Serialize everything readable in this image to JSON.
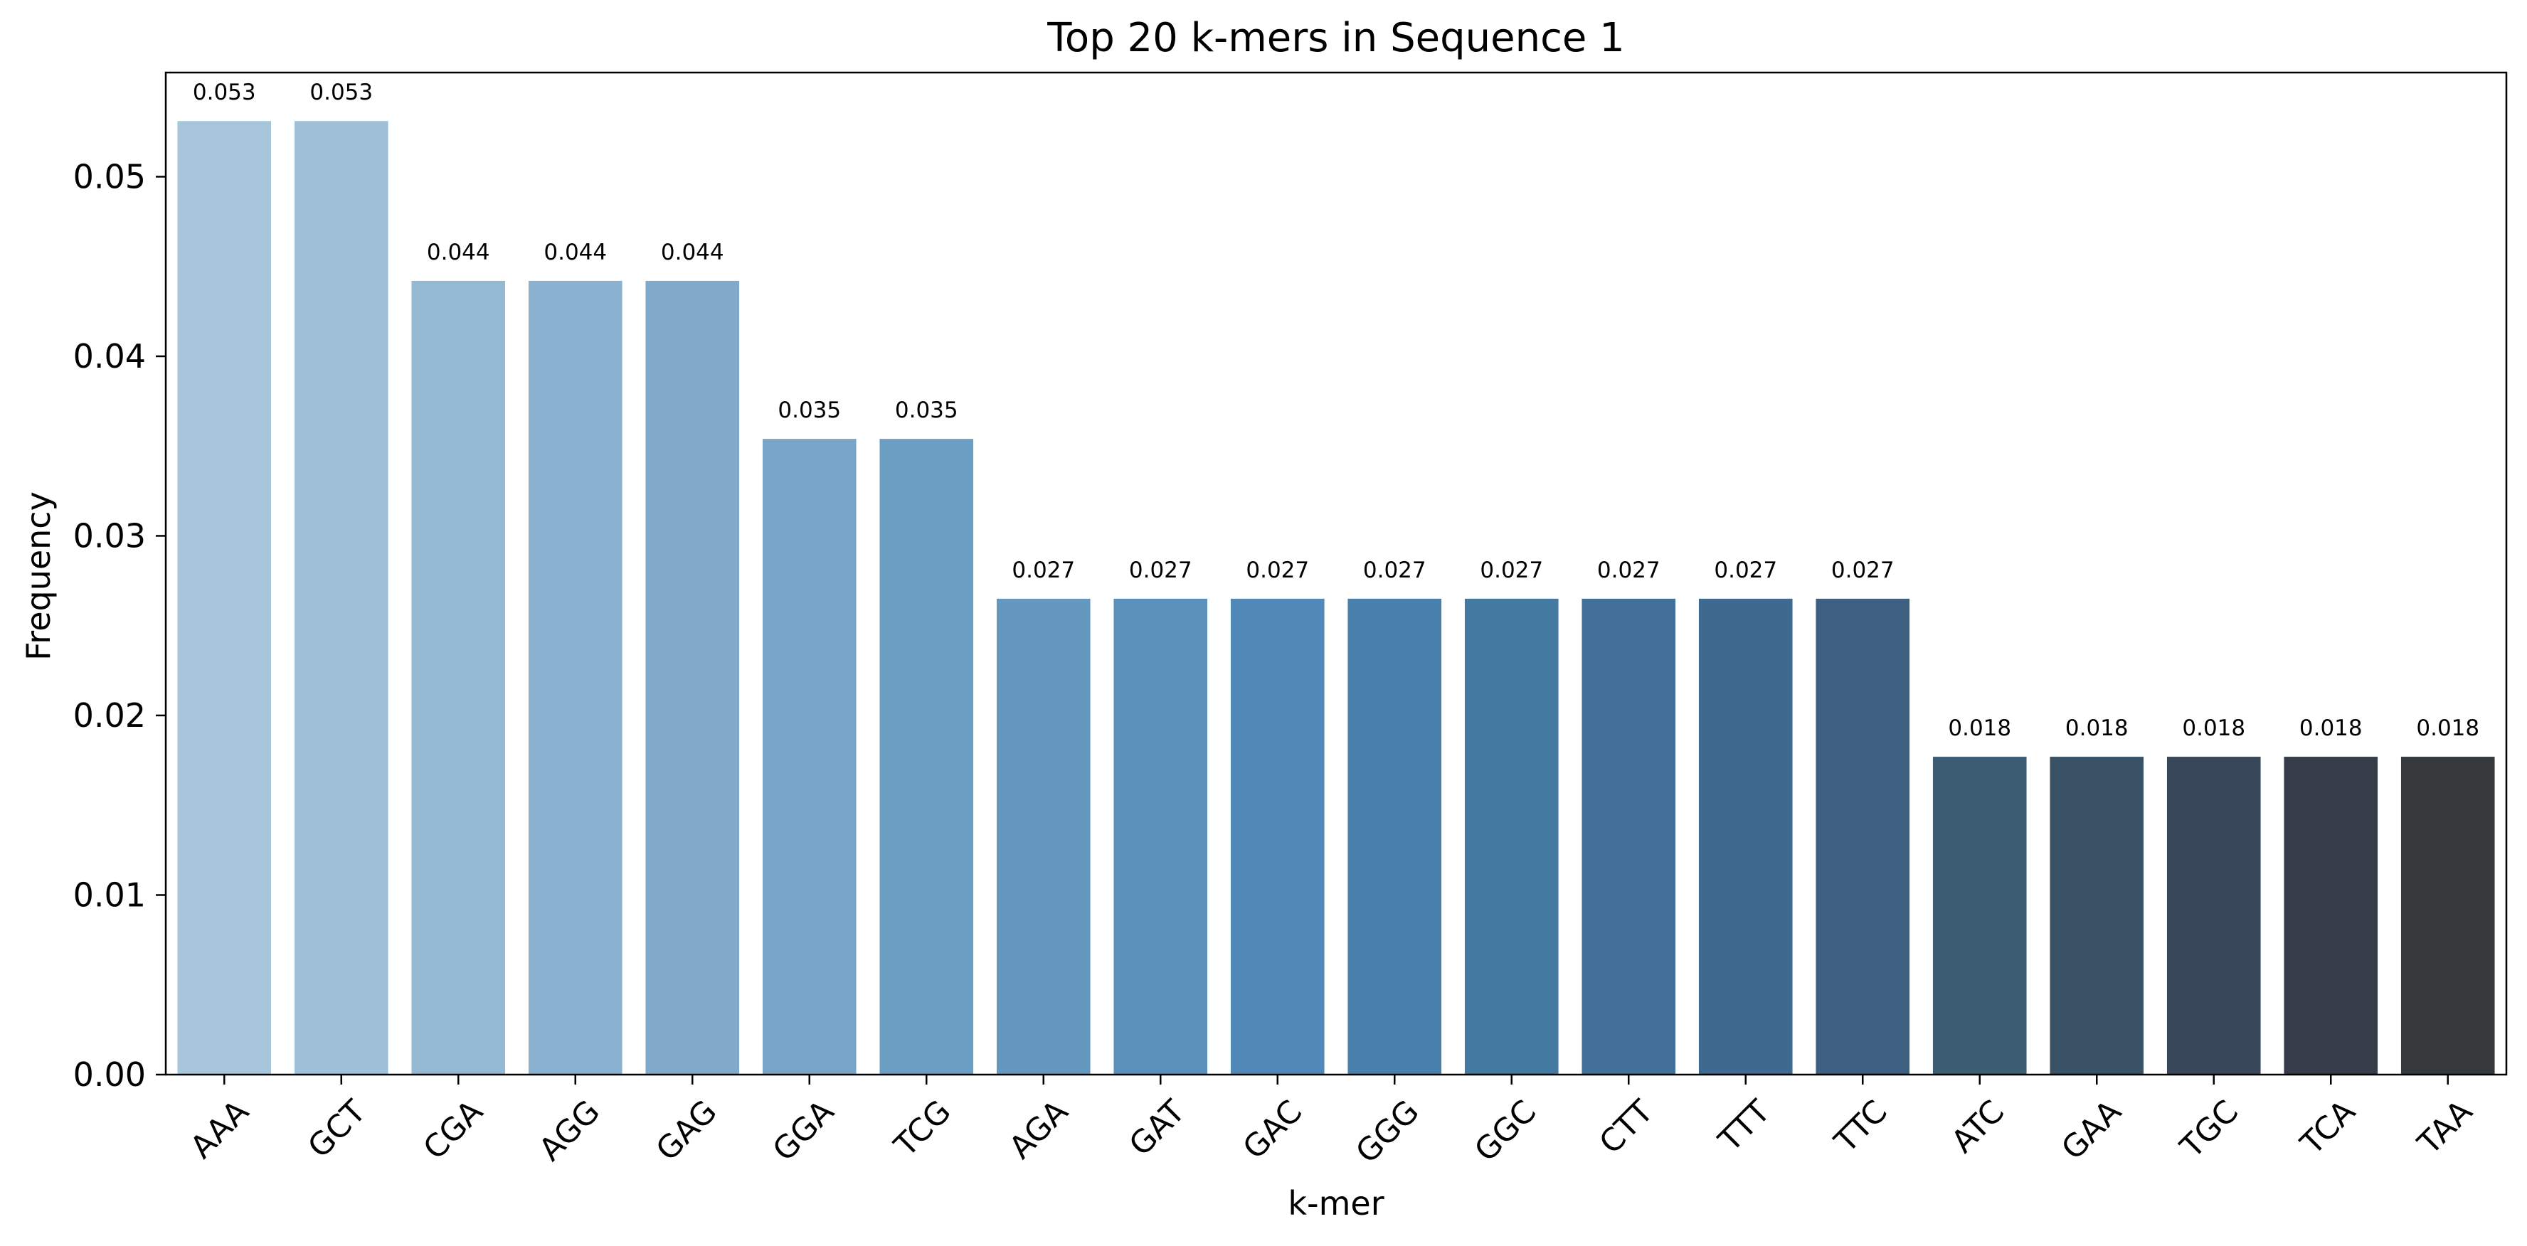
{
  "chart_data": {
    "type": "bar",
    "title": "Top 20 k-mers in Sequence 1",
    "xlabel": "k-mer",
    "ylabel": "Frequency",
    "categories": [
      "AAA",
      "GCT",
      "CGA",
      "AGG",
      "GAG",
      "GGA",
      "TCG",
      "AGA",
      "GAT",
      "GAC",
      "GGG",
      "GGC",
      "CTT",
      "TTT",
      "TTC",
      "ATC",
      "GAA",
      "TGC",
      "TCA",
      "TAA"
    ],
    "values": [
      0.0531,
      0.0531,
      0.0442,
      0.0442,
      0.0442,
      0.0354,
      0.0354,
      0.0265,
      0.0265,
      0.0265,
      0.0265,
      0.0265,
      0.0265,
      0.0265,
      0.0265,
      0.0177,
      0.0177,
      0.0177,
      0.0177,
      0.0177
    ],
    "value_labels": [
      "0.053",
      "0.053",
      "0.044",
      "0.044",
      "0.044",
      "0.035",
      "0.035",
      "0.027",
      "0.027",
      "0.027",
      "0.027",
      "0.027",
      "0.027",
      "0.027",
      "0.027",
      "0.018",
      "0.018",
      "0.018",
      "0.018",
      "0.018"
    ],
    "ylim": [
      0,
      0.0558
    ],
    "yticks": [
      0,
      0.01,
      0.02,
      0.03,
      0.04,
      0.05
    ],
    "ytick_labels": [
      "0.00",
      "0.01",
      "0.02",
      "0.03",
      "0.04",
      "0.05"
    ],
    "xtick_rotation": 45,
    "grid": false,
    "legend": "none",
    "colors": [
      "#a7c6dc",
      "#9fc0d8",
      "#94b9d3",
      "#8ab1cf",
      "#81a9ca",
      "#78a5c7",
      "#6b9ec3",
      "#6498bf",
      "#5b90bb",
      "#5088b8",
      "#4880ab",
      "#4479a2",
      "#42709a",
      "#406990",
      "#3d5f80",
      "#3d5d75",
      "#3a5266",
      "#38475a",
      "#353e48",
      "#35393c"
    ]
  }
}
